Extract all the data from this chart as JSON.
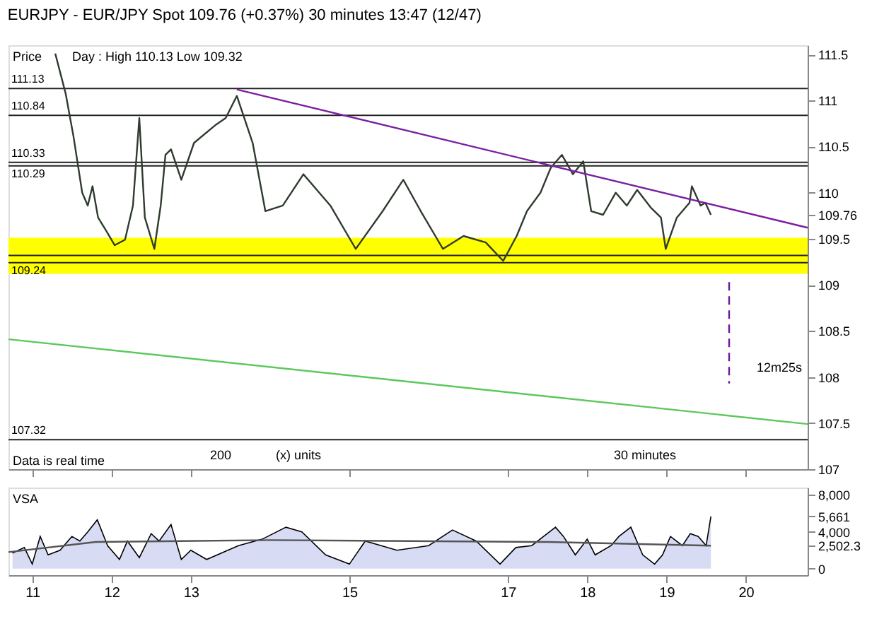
{
  "chart_data": [
    {
      "type": "line",
      "title": "EURJPY - EUR/JPY Spot 109.76 (+0.37%) 30 minutes 13:47 (12/47)",
      "xlim": [
        10.7,
        20.78
      ],
      "ylim": [
        107.0,
        111.6
      ],
      "tick_labels": "y",
      "xticks": [
        11,
        12,
        13,
        15,
        17,
        18,
        19,
        20
      ],
      "yticks": [
        107,
        107.5,
        108,
        108.5,
        109,
        109.5,
        {
          "value": 109.76,
          "label": "109.76"
        },
        110,
        110.5,
        111,
        111.5
      ],
      "series": [
        {
          "color": "#2e3b2e",
          "x": [
            11.29,
            11.42,
            11.52,
            11.63,
            11.7,
            11.76,
            11.83,
            11.93,
            12.04,
            12.17,
            12.27,
            12.35,
            12.42,
            12.54,
            12.62,
            12.68,
            12.75,
            12.88,
            13.04,
            13.32,
            13.44,
            13.58,
            13.78,
            13.94,
            14.16,
            14.42,
            14.76,
            15.08,
            15.42,
            15.68,
            15.9,
            16.18,
            16.44,
            16.72,
            16.94,
            17.11,
            17.24,
            17.41,
            17.54,
            17.68,
            17.82,
            17.95,
            18.05,
            18.2,
            18.36,
            18.5,
            18.63,
            18.8,
            18.93,
            18.99,
            19.13,
            19.29,
            19.32,
            19.43,
            19.49,
            19.56
          ],
          "values": [
            111.51,
            111.08,
            110.61,
            110.0,
            109.86,
            110.07,
            109.73,
            109.59,
            109.43,
            109.49,
            109.86,
            110.81,
            109.73,
            109.39,
            109.86,
            110.41,
            110.47,
            110.14,
            110.54,
            110.74,
            110.81,
            111.05,
            110.54,
            109.8,
            109.86,
            110.2,
            109.86,
            109.39,
            109.8,
            110.14,
            109.8,
            109.39,
            109.53,
            109.46,
            109.26,
            109.53,
            109.8,
            110.0,
            110.27,
            110.41,
            110.2,
            110.34,
            109.8,
            109.76,
            110.0,
            109.86,
            110.03,
            109.84,
            109.73,
            109.39,
            109.73,
            109.89,
            110.07,
            109.86,
            109.89,
            109.76
          ]
        },
        {
          "type": "line",
          "color": "#7b1fa2",
          "x": [
            13.58,
            20.78
          ],
          "values": [
            111.12,
            109.62
          ]
        },
        {
          "type": "line",
          "color": "#5cc85c",
          "x": [
            10.7,
            20.78
          ],
          "values": [
            108.41,
            107.49
          ]
        },
        {
          "type": "line",
          "color": "#6a1b9a",
          "line_style": "dashed",
          "x": [
            19.79,
            19.79
          ],
          "values": [
            109.03,
            107.93
          ]
        }
      ],
      "bands": [
        {
          "axis": "y",
          "from": 109.12,
          "to": 109.51,
          "color": "#ffff00"
        }
      ],
      "ref_lines": [
        {
          "axis": "y",
          "value": 111.13,
          "label": "111.13",
          "color": "#222222"
        },
        {
          "axis": "y",
          "value": 110.84,
          "label": "110.84",
          "color": "#222222"
        },
        {
          "axis": "y",
          "value": 110.33,
          "label": "110.33",
          "color": "#222222"
        },
        {
          "axis": "y",
          "value": 110.29,
          "label": "110.29",
          "color": "#222222"
        },
        {
          "axis": "y",
          "value": 109.32,
          "color": "#222222"
        },
        {
          "axis": "y",
          "value": 109.24,
          "label": "109.24",
          "color": "#222222"
        },
        {
          "axis": "y",
          "value": 107.32,
          "label": "107.32",
          "color": "#222222"
        }
      ],
      "annotations": [
        "200",
        "(x) units",
        "30 minutes",
        "Price",
        "Day : High 110.13 Low 109.32",
        "Data is real time",
        "12m25s"
      ]
    },
    {
      "type": "area",
      "xlim": [
        10.7,
        20.78
      ],
      "ylim": [
        -700,
        8800
      ],
      "xticks": [
        11,
        12,
        13,
        15,
        17,
        18,
        19,
        20
      ],
      "yticks": [
        0,
        {
          "value": 2502.3,
          "label": "2,502.3"
        },
        {
          "value": 4000,
          "label": "4,000"
        },
        {
          "value": 5661,
          "label": "5,661"
        },
        {
          "value": 8000,
          "label": "8,000"
        }
      ],
      "series": [
        {
          "color": "#c8ccf0",
          "x": [
            10.75,
            10.9,
            11.0,
            11.1,
            11.2,
            11.35,
            11.5,
            11.6,
            11.7,
            11.82,
            11.95,
            12.1,
            12.2,
            12.35,
            12.5,
            12.6,
            12.75,
            12.88,
            13.0,
            13.2,
            13.6,
            13.9,
            14.2,
            14.4,
            14.7,
            15.0,
            15.2,
            15.6,
            16.0,
            16.3,
            16.6,
            16.9,
            17.1,
            17.3,
            17.45,
            17.6,
            17.7,
            17.85,
            18.0,
            18.1,
            18.3,
            18.4,
            18.55,
            18.7,
            18.85,
            18.95,
            19.05,
            19.2,
            19.3,
            19.4,
            19.5,
            19.56
          ],
          "values": [
            1700,
            2300,
            500,
            3500,
            1500,
            2000,
            3500,
            3000,
            4000,
            5300,
            2500,
            1000,
            3000,
            1200,
            3800,
            3000,
            4800,
            1000,
            2000,
            1000,
            2500,
            3200,
            4500,
            4000,
            1500,
            500,
            3000,
            2000,
            2500,
            4200,
            3000,
            500,
            2300,
            2500,
            3500,
            4500,
            3500,
            1500,
            3200,
            1500,
            2500,
            3500,
            4500,
            1500,
            500,
            1500,
            3500,
            2500,
            3800,
            3500,
            2500,
            5661
          ]
        },
        {
          "type": "line",
          "color": "#555555",
          "x": [
            10.7,
            11.8,
            14.0,
            17.5,
            19.56
          ],
          "values": [
            1800,
            2900,
            3100,
            2900,
            2502.3
          ]
        }
      ],
      "annotations": [
        "VSA"
      ]
    }
  ]
}
